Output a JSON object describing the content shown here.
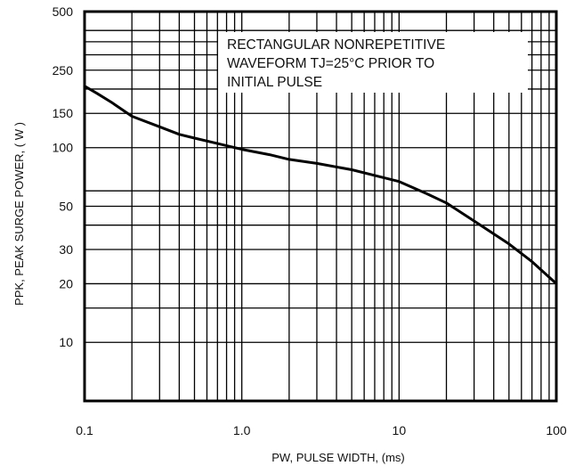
{
  "chart_data": {
    "type": "line",
    "xscale": "log",
    "yscale": "log",
    "xlim": [
      0.1,
      100
    ],
    "ylim": [
      5,
      500
    ],
    "grid": true,
    "xlabel": "PW, PULSE WIDTH, (ms)",
    "ylabel": "PPK, PEAK SURGE POWER, ( W )",
    "annotation": [
      "RECTANGULAR NONREPETITIVE",
      "WAVEFORM TJ=25°C PRIOR TO",
      "INITIAL PULSE"
    ],
    "x_ticks": [
      {
        "value": 0.1,
        "label": "0.1"
      },
      {
        "value": 1,
        "label": "1.0"
      },
      {
        "value": 10,
        "label": "10"
      },
      {
        "value": 100,
        "label": "100"
      }
    ],
    "y_ticks": [
      {
        "value": 500,
        "label": "500"
      },
      {
        "value": 250,
        "label": "250"
      },
      {
        "value": 150,
        "label": "150"
      },
      {
        "value": 100,
        "label": "100"
      },
      {
        "value": 50,
        "label": "50"
      },
      {
        "value": 30,
        "label": "30"
      },
      {
        "value": 20,
        "label": "20"
      },
      {
        "value": 10,
        "label": "10"
      }
    ],
    "y_gridlines": [
      500,
      400,
      350,
      300,
      250,
      200,
      150,
      100,
      60,
      50,
      40,
      30,
      20,
      15,
      10
    ],
    "series": [
      {
        "x": [
          0.1,
          0.12,
          0.15,
          0.2,
          0.3,
          0.4,
          0.5,
          0.7,
          1,
          1.5,
          2,
          3,
          5,
          7,
          10,
          15,
          20,
          30,
          50,
          70,
          100
        ],
        "y": [
          207,
          190,
          170,
          145,
          128,
          117,
          112,
          105,
          98,
          92,
          87,
          83,
          77,
          72,
          67,
          58,
          52,
          42,
          32,
          26,
          20
        ]
      }
    ]
  }
}
